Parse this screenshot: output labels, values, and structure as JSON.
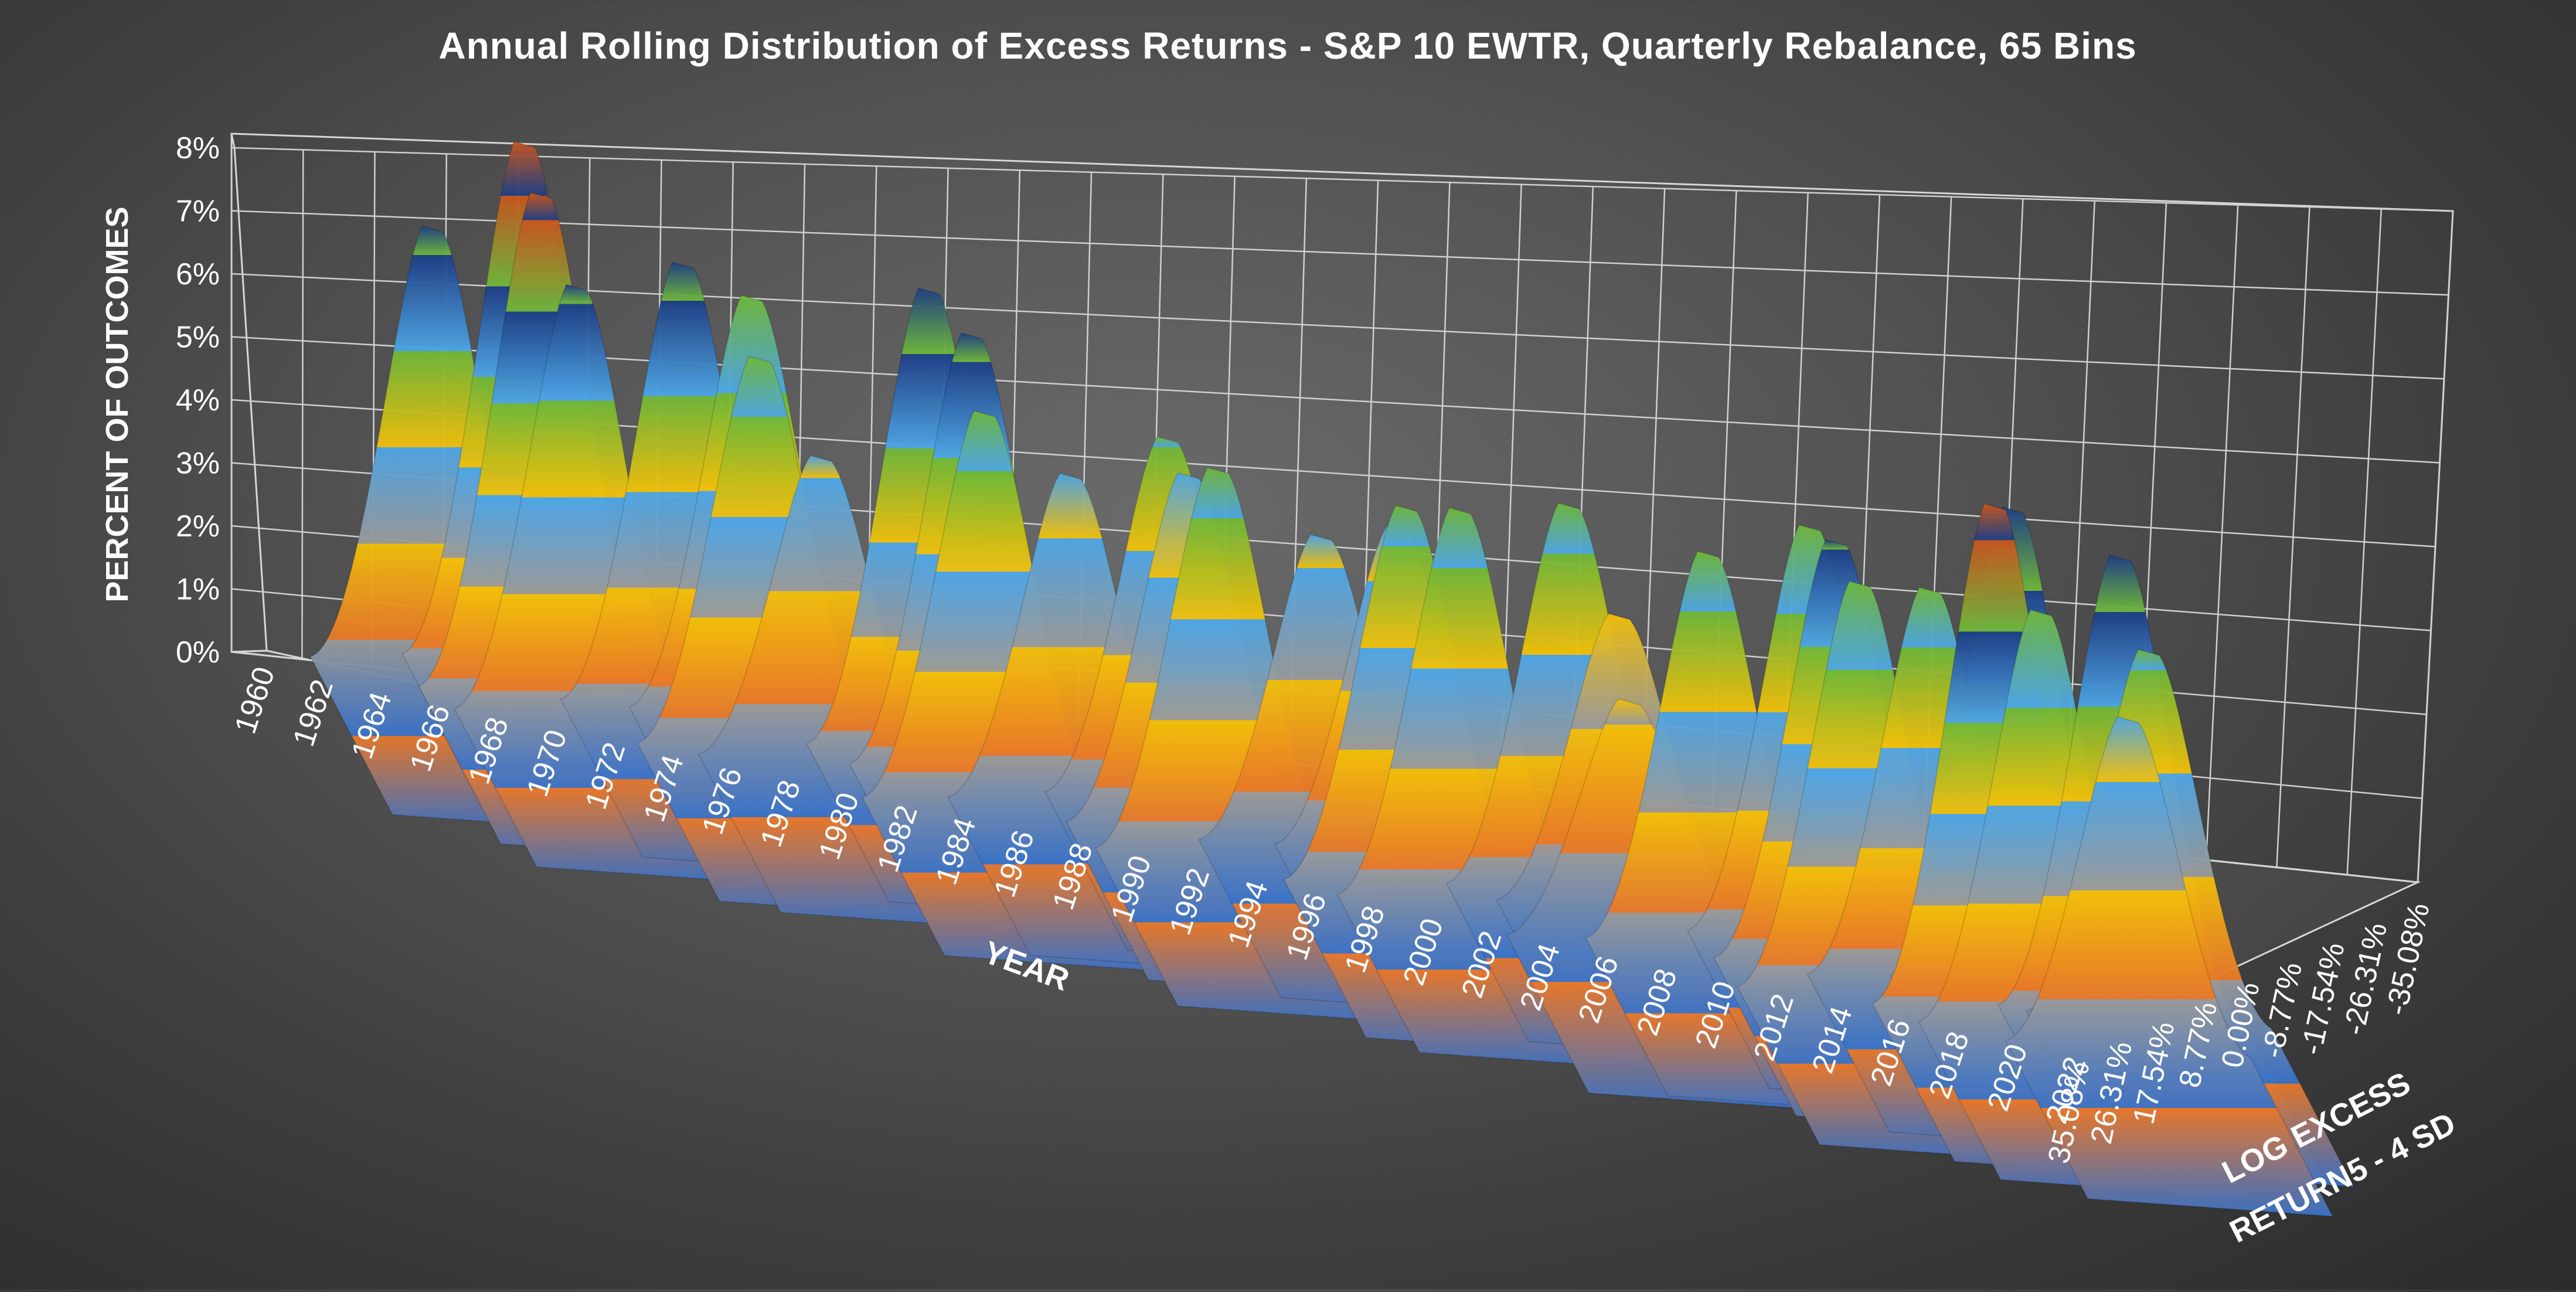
{
  "chart_data": {
    "type": "surface",
    "title": "Annual Rolling Distribution of Excess Returns - S&P 10 EWTR, Quarterly Rebalance, 65 Bins",
    "zlabel": "PERCENT OF OUTCOMES",
    "xlabel": "YEAR",
    "ylabel_line1": "LOG EXCESS",
    "ylabel_line2": "RETURN5 - 4 SD",
    "zlim": [
      0,
      8
    ],
    "z_ticks": [
      "0%",
      "1%",
      "2%",
      "3%",
      "4%",
      "5%",
      "6%",
      "7%",
      "8%"
    ],
    "x_ticks": [
      "1960",
      "1962",
      "1964",
      "1966",
      "1968",
      "1970",
      "1972",
      "1974",
      "1976",
      "1978",
      "1980",
      "1982",
      "1984",
      "1986",
      "1988",
      "1990",
      "1992",
      "1994",
      "1996",
      "1998",
      "2000",
      "2002",
      "2004",
      "2006",
      "2008",
      "2010",
      "2012",
      "2014",
      "2016",
      "2018",
      "2020",
      "2022"
    ],
    "y_ticks": [
      "35.08%",
      "26.31%",
      "17.54%",
      "8.77%",
      "0.00%",
      "-8.77%",
      "-17.54%",
      "-26.31%",
      "-35.08%"
    ],
    "band_colors": [
      "#3a72c8",
      "#e8782a",
      "#9a9a9a",
      "#f2c00a",
      "#4ea6e6",
      "#6fb83a",
      "#1e3f86",
      "#c8561e"
    ],
    "ridge_peaks": [
      {
        "year": 1963,
        "peak_pct": 6.3
      },
      {
        "year": 1965,
        "peak_pct": 7.6
      },
      {
        "year": 1967,
        "peak_pct": 7.3
      },
      {
        "year": 1969,
        "peak_pct": 6.2
      },
      {
        "year": 1971,
        "peak_pct": 6.4
      },
      {
        "year": 1973,
        "peak_pct": 6.0
      },
      {
        "year": 1975,
        "peak_pct": 5.6
      },
      {
        "year": 1977,
        "peak_pct": 4.2
      },
      {
        "year": 1979,
        "peak_pct": 6.7
      },
      {
        "year": 1981,
        "peak_pct": 6.3
      },
      {
        "year": 1983,
        "peak_pct": 5.6
      },
      {
        "year": 1985,
        "peak_pct": 4.6
      },
      {
        "year": 1987,
        "peak_pct": 5.1
      },
      {
        "year": 1989,
        "peak_pct": 5.0
      },
      {
        "year": 1991,
        "peak_pct": 5.5
      },
      {
        "year": 1993,
        "peak_pct": 4.3
      },
      {
        "year": 1995,
        "peak_pct": 4.5
      },
      {
        "year": 1997,
        "peak_pct": 5.4
      },
      {
        "year": 1999,
        "peak_pct": 5.6
      },
      {
        "year": 2001,
        "peak_pct": 5.5
      },
      {
        "year": 2003,
        "peak_pct": 4.0
      },
      {
        "year": 2005,
        "peak_pct": 3.2
      },
      {
        "year": 2007,
        "peak_pct": 5.6
      },
      {
        "year": 2009,
        "peak_pct": 5.9
      },
      {
        "year": 2011,
        "peak_pct": 6.1
      },
      {
        "year": 2013,
        "peak_pct": 5.9
      },
      {
        "year": 2014,
        "peak_pct": 5.6
      },
      {
        "year": 2016,
        "peak_pct": 6.9
      },
      {
        "year": 2017,
        "peak_pct": 7.4
      },
      {
        "year": 2019,
        "peak_pct": 6.0
      },
      {
        "year": 2020,
        "peak_pct": 6.6
      },
      {
        "year": 2021,
        "peak_pct": 5.2
      },
      {
        "year": 2022,
        "peak_pct": 4.6
      }
    ]
  }
}
